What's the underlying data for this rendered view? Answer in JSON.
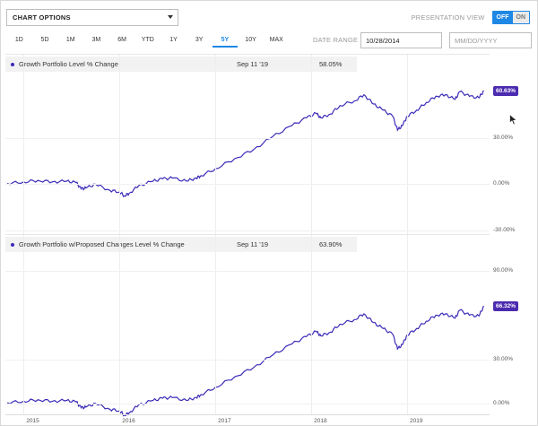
{
  "toolbar": {
    "chart_options_label": "CHART OPTIONS",
    "presentation_label": "PRESENTATION VIEW",
    "toggle_off": "OFF",
    "toggle_on": "ON",
    "ranges": [
      "1D",
      "5D",
      "1M",
      "3M",
      "6M",
      "YTD",
      "1Y",
      "3Y",
      "5Y",
      "10Y",
      "MAX"
    ],
    "active_range": "5Y",
    "date_range_label": "DATE RANGE",
    "start_date": "10/28/2014",
    "end_date_placeholder": "MM/DD/YYYY"
  },
  "colors": {
    "accent": "#1e88e5",
    "series": "#3b2bb8",
    "badge": "#4b2bb0"
  },
  "chart_data": [
    {
      "type": "line",
      "title": "",
      "series": [
        {
          "name": "Growth Portfolio Level % Change"
        }
      ],
      "legend": {
        "date": "Sep 11 '19",
        "value": "58.05%"
      },
      "end_label": "60.63%",
      "ytick_labels": [
        "30.00%",
        "0.00%",
        "-30.00%"
      ],
      "ylim": [
        -30,
        70
      ],
      "x": [
        2014.83,
        2015.0,
        2015.15,
        2015.3,
        2015.45,
        2015.55,
        2015.6,
        2015.65,
        2015.75,
        2015.9,
        2016.0,
        2016.05,
        2016.1,
        2016.2,
        2016.35,
        2016.45,
        2016.55,
        2016.7,
        2016.8,
        2016.85,
        2017.0,
        2017.2,
        2017.4,
        2017.6,
        2017.8,
        2017.95,
        2018.05,
        2018.1,
        2018.2,
        2018.3,
        2018.45,
        2018.55,
        2018.65,
        2018.75,
        2018.85,
        2018.9,
        2018.95,
        2019.0,
        2019.1,
        2019.2,
        2019.3,
        2019.4,
        2019.5,
        2019.55,
        2019.65,
        2019.75,
        2019.8
      ],
      "values": [
        0.5,
        1.5,
        2.5,
        1.5,
        2.0,
        1.0,
        -3.0,
        -2.5,
        0.0,
        -4.0,
        -5.0,
        -7.5,
        -6.0,
        -1.0,
        2.0,
        3.5,
        4.0,
        2.0,
        4.0,
        5.5,
        10.0,
        16.5,
        22.5,
        31.0,
        38.0,
        43.0,
        46.0,
        43.0,
        45.5,
        51.0,
        54.0,
        58.0,
        52.0,
        48.0,
        44.0,
        35.0,
        38.0,
        44.0,
        48.0,
        53.0,
        57.0,
        58.0,
        55.0,
        60.0,
        57.0,
        56.0,
        60.63
      ]
    },
    {
      "type": "line",
      "title": "",
      "series": [
        {
          "name": "Growth Portfolio w/Proposed Changes Level % Change"
        }
      ],
      "legend": {
        "date": "Sep 11 '19",
        "value": "63.90%"
      },
      "end_label": "66.32%",
      "ytick_labels": [
        "90.00%",
        "30.00%",
        "0.00%"
      ],
      "ylim": [
        -5,
        100
      ],
      "x": [
        2014.83,
        2015.0,
        2015.15,
        2015.3,
        2015.45,
        2015.55,
        2015.6,
        2015.65,
        2015.75,
        2015.9,
        2016.0,
        2016.05,
        2016.1,
        2016.2,
        2016.35,
        2016.45,
        2016.55,
        2016.7,
        2016.8,
        2016.85,
        2017.0,
        2017.2,
        2017.4,
        2017.6,
        2017.8,
        2017.95,
        2018.05,
        2018.1,
        2018.2,
        2018.3,
        2018.45,
        2018.55,
        2018.65,
        2018.75,
        2018.85,
        2018.9,
        2018.95,
        2019.0,
        2019.1,
        2019.2,
        2019.3,
        2019.4,
        2019.5,
        2019.55,
        2019.65,
        2019.75,
        2019.8
      ],
      "values": [
        0.5,
        1.5,
        2.5,
        1.5,
        2.0,
        1.0,
        -3.0,
        -2.5,
        0.0,
        -4.0,
        -5.0,
        -8.0,
        -6.5,
        -1.0,
        2.0,
        3.5,
        4.0,
        2.0,
        4.0,
        6.0,
        11.0,
        18.0,
        24.5,
        33.0,
        40.5,
        45.5,
        49.0,
        46.0,
        48.5,
        54.0,
        57.0,
        61.0,
        55.0,
        51.0,
        47.0,
        37.0,
        40.0,
        46.5,
        51.0,
        56.0,
        60.0,
        61.0,
        58.0,
        63.5,
        60.0,
        59.5,
        66.32
      ]
    }
  ],
  "x_axis": {
    "ticks": [
      "2015",
      "2016",
      "2017",
      "2018",
      "2019"
    ],
    "tick_values": [
      2015,
      2016,
      2017,
      2018,
      2019
    ]
  }
}
